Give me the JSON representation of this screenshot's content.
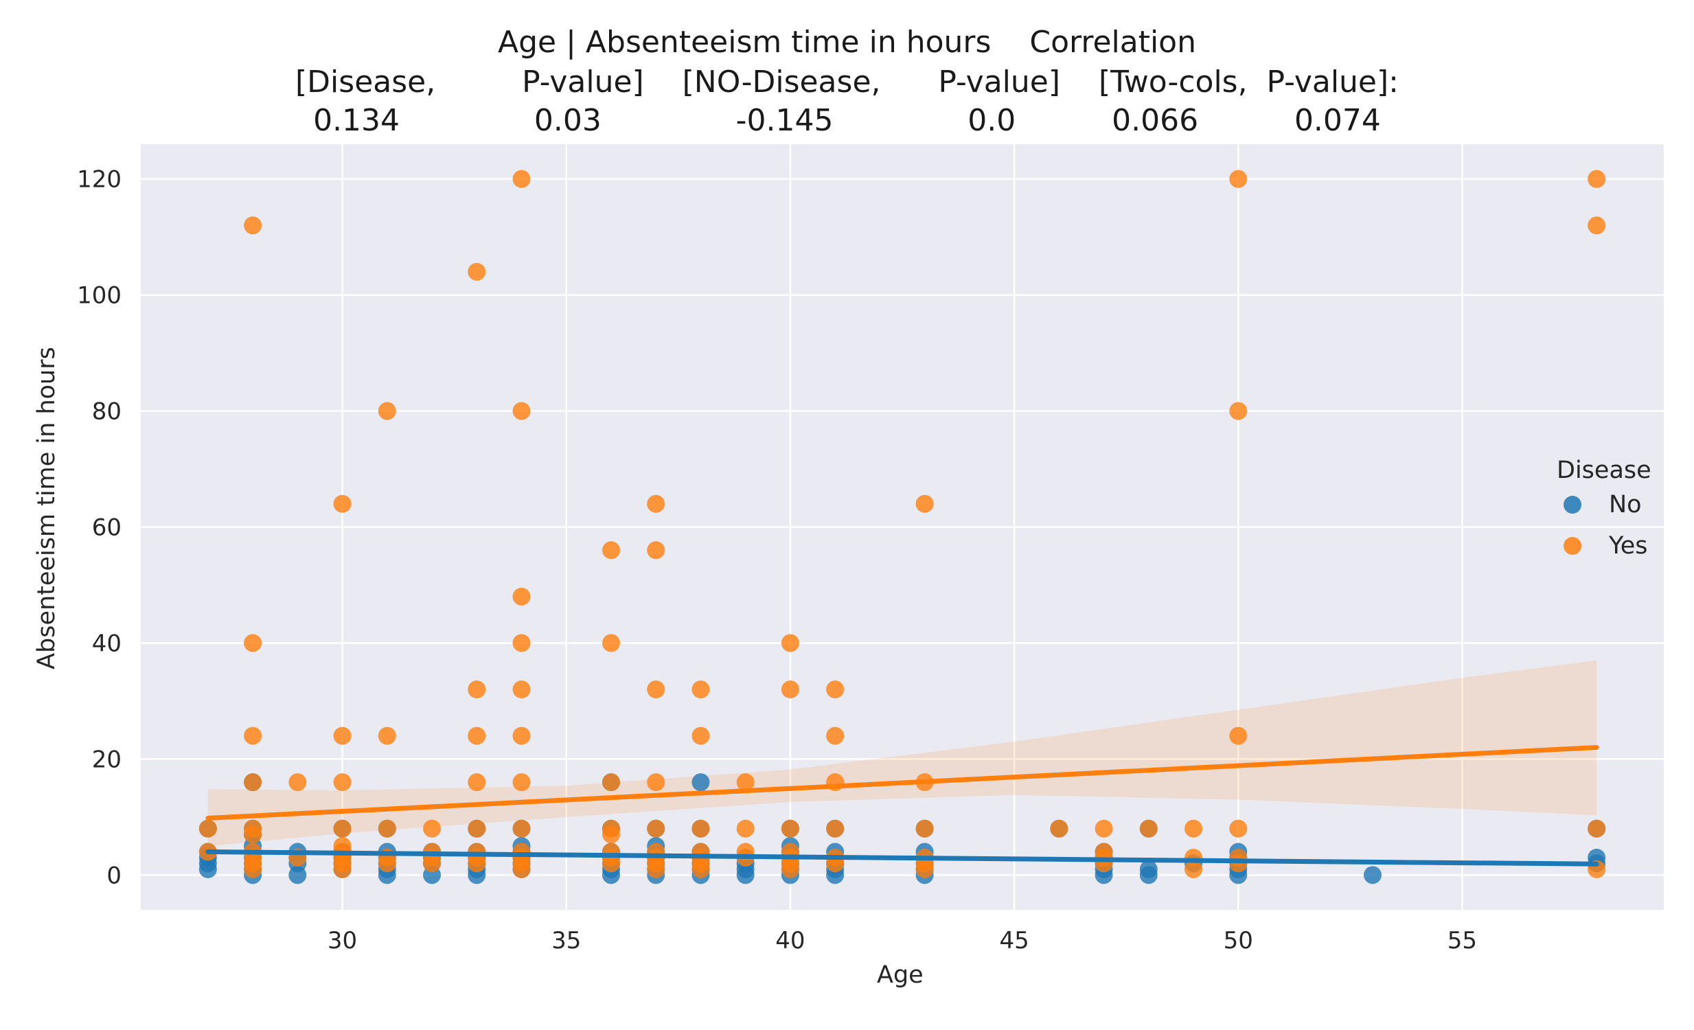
{
  "chart_data": {
    "type": "scatter",
    "title_lines": [
      "Age | Absenteeism time in hours    Correlation",
      "[Disease,         P-value]    [NO-Disease,      P-value]    [Two-cols,  P-value]:",
      "0.134              0.03              -0.145              0.0          0.066          0.074"
    ],
    "xlabel": "Age",
    "ylabel": "Absenteeism time in hours",
    "xlim": [
      25.5,
      59.5
    ],
    "ylim": [
      -6,
      126
    ],
    "xticks": [
      30,
      35,
      40,
      45,
      50,
      55
    ],
    "yticks": [
      0,
      20,
      40,
      60,
      80,
      100,
      120
    ],
    "grid": true,
    "legend": {
      "title": "Disease",
      "placement": "center-right",
      "entries": [
        {
          "label": "No",
          "color": "#1f77b4"
        },
        {
          "label": "Yes",
          "color": "#ff7f0e"
        }
      ]
    },
    "series": [
      {
        "name": "No",
        "color": "#1f77b4",
        "points": [
          [
            27,
            1
          ],
          [
            27,
            2
          ],
          [
            27,
            3
          ],
          [
            27,
            4
          ],
          [
            27,
            8
          ],
          [
            28,
            0
          ],
          [
            28,
            1
          ],
          [
            28,
            2
          ],
          [
            28,
            3
          ],
          [
            28,
            4
          ],
          [
            28,
            5
          ],
          [
            28,
            7
          ],
          [
            28,
            8
          ],
          [
            28,
            16
          ],
          [
            29,
            0
          ],
          [
            29,
            2
          ],
          [
            29,
            3
          ],
          [
            29,
            4
          ],
          [
            30,
            1
          ],
          [
            30,
            2
          ],
          [
            30,
            3
          ],
          [
            30,
            4
          ],
          [
            30,
            8
          ],
          [
            31,
            0
          ],
          [
            31,
            1
          ],
          [
            31,
            2
          ],
          [
            31,
            3
          ],
          [
            31,
            4
          ],
          [
            31,
            8
          ],
          [
            32,
            0
          ],
          [
            32,
            2
          ],
          [
            32,
            3
          ],
          [
            32,
            4
          ],
          [
            33,
            0
          ],
          [
            33,
            1
          ],
          [
            33,
            2
          ],
          [
            33,
            3
          ],
          [
            33,
            4
          ],
          [
            33,
            8
          ],
          [
            34,
            1
          ],
          [
            34,
            2
          ],
          [
            34,
            3
          ],
          [
            34,
            4
          ],
          [
            34,
            5
          ],
          [
            34,
            8
          ],
          [
            36,
            0
          ],
          [
            36,
            1
          ],
          [
            36,
            2
          ],
          [
            36,
            3
          ],
          [
            36,
            4
          ],
          [
            36,
            8
          ],
          [
            36,
            16
          ],
          [
            37,
            0
          ],
          [
            37,
            1
          ],
          [
            37,
            2
          ],
          [
            37,
            3
          ],
          [
            37,
            4
          ],
          [
            37,
            5
          ],
          [
            37,
            8
          ],
          [
            38,
            0
          ],
          [
            38,
            1
          ],
          [
            38,
            2
          ],
          [
            38,
            3
          ],
          [
            38,
            4
          ],
          [
            38,
            8
          ],
          [
            38,
            16
          ],
          [
            39,
            0
          ],
          [
            39,
            1
          ],
          [
            39,
            2
          ],
          [
            39,
            3
          ],
          [
            40,
            0
          ],
          [
            40,
            1
          ],
          [
            40,
            2
          ],
          [
            40,
            3
          ],
          [
            40,
            4
          ],
          [
            40,
            5
          ],
          [
            40,
            8
          ],
          [
            41,
            0
          ],
          [
            41,
            1
          ],
          [
            41,
            2
          ],
          [
            41,
            3
          ],
          [
            41,
            4
          ],
          [
            41,
            8
          ],
          [
            43,
            0
          ],
          [
            43,
            1
          ],
          [
            43,
            2
          ],
          [
            43,
            3
          ],
          [
            43,
            4
          ],
          [
            43,
            8
          ],
          [
            46,
            8
          ],
          [
            47,
            0
          ],
          [
            47,
            1
          ],
          [
            47,
            2
          ],
          [
            47,
            3
          ],
          [
            47,
            4
          ],
          [
            48,
            0
          ],
          [
            48,
            1
          ],
          [
            48,
            8
          ],
          [
            49,
            2
          ],
          [
            50,
            0
          ],
          [
            50,
            1
          ],
          [
            50,
            2
          ],
          [
            50,
            3
          ],
          [
            50,
            4
          ],
          [
            53,
            0
          ],
          [
            58,
            2
          ],
          [
            58,
            3
          ],
          [
            58,
            8
          ]
        ],
        "fit": {
          "x": [
            27,
            58
          ],
          "y": [
            4.0,
            1.9
          ]
        }
      },
      {
        "name": "Yes",
        "color": "#ff7f0e",
        "points": [
          [
            27,
            4
          ],
          [
            27,
            8
          ],
          [
            28,
            1
          ],
          [
            28,
            2
          ],
          [
            28,
            3
          ],
          [
            28,
            4
          ],
          [
            28,
            7
          ],
          [
            28,
            8
          ],
          [
            28,
            16
          ],
          [
            28,
            24
          ],
          [
            28,
            40
          ],
          [
            28,
            112
          ],
          [
            29,
            3
          ],
          [
            29,
            16
          ],
          [
            30,
            1
          ],
          [
            30,
            2
          ],
          [
            30,
            3
          ],
          [
            30,
            4
          ],
          [
            30,
            5
          ],
          [
            30,
            8
          ],
          [
            30,
            16
          ],
          [
            30,
            24
          ],
          [
            30,
            64
          ],
          [
            31,
            2
          ],
          [
            31,
            3
          ],
          [
            31,
            8
          ],
          [
            31,
            24
          ],
          [
            31,
            80
          ],
          [
            32,
            2
          ],
          [
            32,
            3
          ],
          [
            32,
            4
          ],
          [
            32,
            8
          ],
          [
            33,
            2
          ],
          [
            33,
            3
          ],
          [
            33,
            4
          ],
          [
            33,
            8
          ],
          [
            33,
            16
          ],
          [
            33,
            24
          ],
          [
            33,
            32
          ],
          [
            33,
            104
          ],
          [
            34,
            1
          ],
          [
            34,
            2
          ],
          [
            34,
            3
          ],
          [
            34,
            4
          ],
          [
            34,
            8
          ],
          [
            34,
            16
          ],
          [
            34,
            24
          ],
          [
            34,
            32
          ],
          [
            34,
            40
          ],
          [
            34,
            48
          ],
          [
            34,
            80
          ],
          [
            34,
            120
          ],
          [
            36,
            2
          ],
          [
            36,
            3
          ],
          [
            36,
            4
          ],
          [
            36,
            7
          ],
          [
            36,
            8
          ],
          [
            36,
            16
          ],
          [
            36,
            40
          ],
          [
            36,
            56
          ],
          [
            37,
            1
          ],
          [
            37,
            2
          ],
          [
            37,
            3
          ],
          [
            37,
            4
          ],
          [
            37,
            8
          ],
          [
            37,
            16
          ],
          [
            37,
            32
          ],
          [
            37,
            56
          ],
          [
            37,
            64
          ],
          [
            38,
            1
          ],
          [
            38,
            2
          ],
          [
            38,
            3
          ],
          [
            38,
            4
          ],
          [
            38,
            8
          ],
          [
            38,
            24
          ],
          [
            38,
            32
          ],
          [
            39,
            3
          ],
          [
            39,
            4
          ],
          [
            39,
            8
          ],
          [
            39,
            16
          ],
          [
            40,
            1
          ],
          [
            40,
            2
          ],
          [
            40,
            3
          ],
          [
            40,
            4
          ],
          [
            40,
            8
          ],
          [
            40,
            32
          ],
          [
            40,
            40
          ],
          [
            41,
            2
          ],
          [
            41,
            3
          ],
          [
            41,
            8
          ],
          [
            41,
            16
          ],
          [
            41,
            24
          ],
          [
            41,
            32
          ],
          [
            43,
            1
          ],
          [
            43,
            2
          ],
          [
            43,
            3
          ],
          [
            43,
            8
          ],
          [
            43,
            16
          ],
          [
            43,
            64
          ],
          [
            46,
            8
          ],
          [
            47,
            2
          ],
          [
            47,
            3
          ],
          [
            47,
            4
          ],
          [
            47,
            8
          ],
          [
            48,
            8
          ],
          [
            49,
            1
          ],
          [
            49,
            3
          ],
          [
            49,
            8
          ],
          [
            50,
            2
          ],
          [
            50,
            3
          ],
          [
            50,
            8
          ],
          [
            50,
            24
          ],
          [
            50,
            80
          ],
          [
            50,
            120
          ],
          [
            58,
            1
          ],
          [
            58,
            8
          ],
          [
            58,
            112
          ],
          [
            58,
            120
          ]
        ],
        "fit": {
          "x": [
            27,
            58
          ],
          "y": [
            9.8,
            22.0
          ]
        },
        "ci_band": {
          "x": [
            27,
            30,
            35,
            40,
            45,
            50,
            55,
            58
          ],
          "lower": [
            5.0,
            7.2,
            10.0,
            12.6,
            13.8,
            13.0,
            11.4,
            10.3
          ],
          "upper": [
            14.8,
            14.6,
            15.4,
            18.2,
            23.0,
            28.5,
            34.0,
            37.0
          ]
        }
      }
    ]
  }
}
